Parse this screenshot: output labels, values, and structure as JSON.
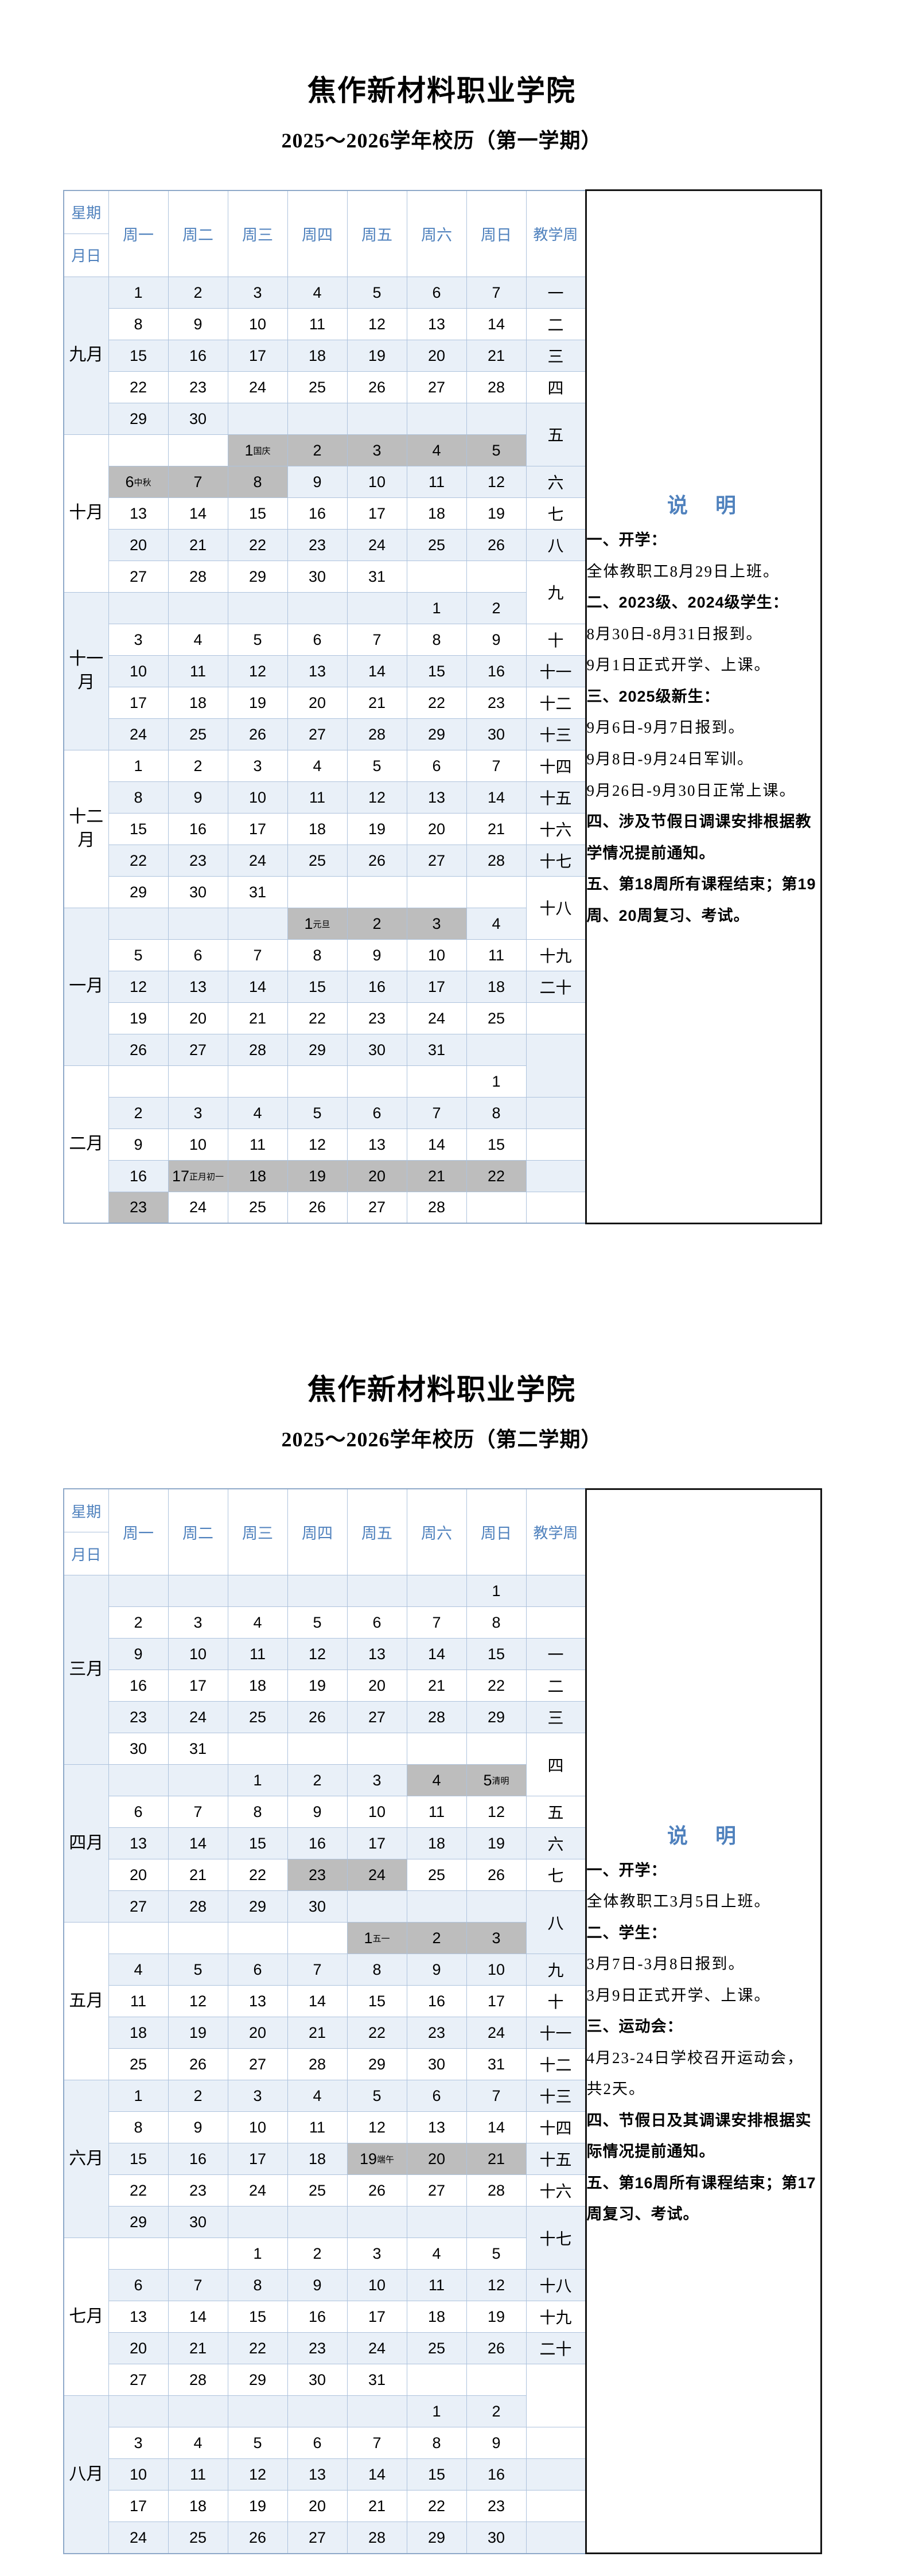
{
  "corner": {
    "top": "星期",
    "bottom": "月日"
  },
  "weekday_headers": [
    "周一",
    "周二",
    "周三",
    "周四",
    "周五",
    "周六",
    "周日"
  ],
  "week_col_header": "教学周",
  "notes_title": "说　明",
  "colors": {
    "header_text_blue": "#4f81bd",
    "light_row": "#e9f0f8",
    "weekend_tint": "#d9e3f1",
    "holiday_gray": "#bdbdbd",
    "grid_border": "#aec3dd",
    "notes_border": "#151515"
  },
  "semesters": [
    {
      "school": "焦作新材料职业学院",
      "title": "2025～2026学年校历（第一学期）",
      "months": [
        {
          "label": "九月",
          "span": 5
        },
        {
          "label": "十月",
          "span": 5
        },
        {
          "label": "十一月",
          "span": 5
        },
        {
          "label": "十二月",
          "span": 5
        },
        {
          "label": "一月",
          "span": 5
        },
        {
          "label": "二月",
          "span": 5
        }
      ],
      "rows": [
        {
          "cells": [
            "1",
            "2",
            "3",
            "4",
            "5",
            "6",
            "7"
          ],
          "w": "一"
        },
        {
          "cells": [
            "8",
            "9",
            "10",
            "11",
            "12",
            "13",
            "14"
          ],
          "w": "二"
        },
        {
          "cells": [
            "15",
            "16",
            "17",
            "18",
            "19",
            "20",
            "21"
          ],
          "w": "三"
        },
        {
          "cells": [
            "22",
            "23",
            "24",
            "25",
            "26",
            "27",
            "28"
          ],
          "w": "四"
        },
        {
          "cells": [
            "29",
            "30",
            "",
            "",
            "",
            "",
            ""
          ],
          "w": "五",
          "ws": 2
        },
        {
          "cells": [
            "",
            "",
            "1|国庆|g",
            "2||g",
            "3||g",
            "4||g",
            "5||g"
          ],
          "w": "-"
        },
        {
          "cells": [
            "6|中秋|g",
            "7||g",
            "8||g",
            "9",
            "10",
            "11",
            "12"
          ],
          "w": "六"
        },
        {
          "cells": [
            "13",
            "14",
            "15",
            "16",
            "17",
            "18",
            "19"
          ],
          "w": "七"
        },
        {
          "cells": [
            "20",
            "21",
            "22",
            "23",
            "24",
            "25",
            "26"
          ],
          "w": "八"
        },
        {
          "cells": [
            "27",
            "28",
            "29",
            "30",
            "31",
            "",
            ""
          ],
          "w": "九",
          "ws": 2
        },
        {
          "cells": [
            "",
            "",
            "",
            "",
            "",
            "1",
            "2"
          ],
          "w": "-"
        },
        {
          "cells": [
            "3",
            "4",
            "5",
            "6",
            "7",
            "8",
            "9"
          ],
          "w": "十"
        },
        {
          "cells": [
            "10",
            "11",
            "12",
            "13",
            "14",
            "15",
            "16"
          ],
          "w": "十一"
        },
        {
          "cells": [
            "17",
            "18",
            "19",
            "20",
            "21",
            "22",
            "23"
          ],
          "w": "十二"
        },
        {
          "cells": [
            "24",
            "25",
            "26",
            "27",
            "28",
            "29",
            "30"
          ],
          "w": "十三"
        },
        {
          "cells": [
            "1",
            "2",
            "3",
            "4",
            "5",
            "6",
            "7"
          ],
          "w": "十四"
        },
        {
          "cells": [
            "8",
            "9",
            "10",
            "11",
            "12",
            "13",
            "14"
          ],
          "w": "十五"
        },
        {
          "cells": [
            "15",
            "16",
            "17",
            "18",
            "19",
            "20",
            "21"
          ],
          "w": "十六"
        },
        {
          "cells": [
            "22",
            "23",
            "24",
            "25",
            "26",
            "27",
            "28"
          ],
          "w": "十七"
        },
        {
          "cells": [
            "29",
            "30",
            "31",
            "",
            "",
            "",
            ""
          ],
          "w": "十八",
          "ws": 2
        },
        {
          "cells": [
            "",
            "",
            "",
            "1|元旦|g",
            "2||g",
            "3||g",
            "4"
          ],
          "w": "-"
        },
        {
          "cells": [
            "5",
            "6",
            "7",
            "8",
            "9",
            "10",
            "11"
          ],
          "w": "十九"
        },
        {
          "cells": [
            "12",
            "13",
            "14",
            "15",
            "16",
            "17",
            "18"
          ],
          "w": "二十"
        },
        {
          "cells": [
            "19",
            "20",
            "21",
            "22",
            "23",
            "24",
            "25"
          ],
          "w": ""
        },
        {
          "cells": [
            "26",
            "27",
            "28",
            "29",
            "30",
            "31",
            ""
          ],
          "w": "",
          "ws": 2
        },
        {
          "cells": [
            "",
            "",
            "",
            "",
            "",
            "",
            "1"
          ],
          "w": "-"
        },
        {
          "cells": [
            "2",
            "3",
            "4",
            "5",
            "6",
            "7",
            "8"
          ],
          "w": ""
        },
        {
          "cells": [
            "9",
            "10",
            "11",
            "12",
            "13",
            "14",
            "15"
          ],
          "w": ""
        },
        {
          "cells": [
            "16",
            "17|正月初一|g",
            "18||g",
            "19||g",
            "20||g",
            "21||g",
            "22||g"
          ],
          "w": ""
        },
        {
          "cells": [
            "23||g",
            "24",
            "25",
            "26",
            "27",
            "28",
            ""
          ],
          "w": ""
        }
      ],
      "notes": [
        {
          "b": true,
          "t": "一、开学："
        },
        {
          "b": false,
          "t": "全体教职工8月29日上班。"
        },
        {
          "b": true,
          "t": "二、2023级、2024级学生："
        },
        {
          "b": false,
          "t": "8月30日-8月31日报到。"
        },
        {
          "b": false,
          "t": "9月1日正式开学、上课。"
        },
        {
          "b": true,
          "t": "三、2025级新生："
        },
        {
          "b": false,
          "t": "9月6日-9月7日报到。"
        },
        {
          "b": false,
          "t": "9月8日-9月24日军训。"
        },
        {
          "b": false,
          "t": "9月26日-9月30日正常上课。"
        },
        {
          "b": true,
          "t": "四、涉及节假日调课安排根据教学情况提前通知。"
        },
        {
          "b": true,
          "t": "五、第18周所有课程结束；第19周、20周复习、考试。"
        }
      ]
    },
    {
      "school": "焦作新材料职业学院",
      "title": "2025～2026学年校历（第二学期）",
      "months": [
        {
          "label": "三月",
          "span": 6
        },
        {
          "label": "四月",
          "span": 5
        },
        {
          "label": "五月",
          "span": 5
        },
        {
          "label": "六月",
          "span": 5
        },
        {
          "label": "七月",
          "span": 5
        },
        {
          "label": "八月",
          "span": 5
        }
      ],
      "rows": [
        {
          "cells": [
            "",
            "",
            "",
            "",
            "",
            "",
            "1"
          ],
          "w": ""
        },
        {
          "cells": [
            "2",
            "3",
            "4",
            "5",
            "6",
            "7",
            "8"
          ],
          "w": ""
        },
        {
          "cells": [
            "9",
            "10",
            "11",
            "12",
            "13",
            "14",
            "15"
          ],
          "w": "一"
        },
        {
          "cells": [
            "16",
            "17",
            "18",
            "19",
            "20",
            "21",
            "22"
          ],
          "w": "二"
        },
        {
          "cells": [
            "23",
            "24",
            "25",
            "26",
            "27",
            "28",
            "29"
          ],
          "w": "三"
        },
        {
          "cells": [
            "30",
            "31",
            "",
            "",
            "",
            "",
            ""
          ],
          "w": "四",
          "ws": 2
        },
        {
          "cells": [
            "",
            "",
            "1",
            "2",
            "3",
            "4||g",
            "5|清明|g"
          ],
          "w": "-"
        },
        {
          "cells": [
            "6",
            "7",
            "8",
            "9",
            "10",
            "11",
            "12"
          ],
          "w": "五"
        },
        {
          "cells": [
            "13",
            "14",
            "15",
            "16",
            "17",
            "18",
            "19"
          ],
          "w": "六"
        },
        {
          "cells": [
            "20",
            "21",
            "22",
            "23||g",
            "24||g",
            "25",
            "26"
          ],
          "w": "七"
        },
        {
          "cells": [
            "27",
            "28",
            "29",
            "30",
            "",
            "",
            ""
          ],
          "w": "八",
          "ws": 2
        },
        {
          "cells": [
            "",
            "",
            "",
            "",
            "1|五一|g",
            "2||g",
            "3||g"
          ],
          "w": "-"
        },
        {
          "cells": [
            "4",
            "5",
            "6",
            "7",
            "8",
            "9",
            "10"
          ],
          "w": "九"
        },
        {
          "cells": [
            "11",
            "12",
            "13",
            "14",
            "15",
            "16",
            "17"
          ],
          "w": "十"
        },
        {
          "cells": [
            "18",
            "19",
            "20",
            "21",
            "22",
            "23",
            "24"
          ],
          "w": "十一"
        },
        {
          "cells": [
            "25",
            "26",
            "27",
            "28",
            "29",
            "30",
            "31"
          ],
          "w": "十二"
        },
        {
          "cells": [
            "1",
            "2",
            "3",
            "4",
            "5",
            "6",
            "7"
          ],
          "w": "十三"
        },
        {
          "cells": [
            "8",
            "9",
            "10",
            "11",
            "12",
            "13",
            "14"
          ],
          "w": "十四"
        },
        {
          "cells": [
            "15",
            "16",
            "17",
            "18",
            "19|端午|g",
            "20||g",
            "21||g"
          ],
          "w": "十五"
        },
        {
          "cells": [
            "22",
            "23",
            "24",
            "25",
            "26",
            "27",
            "28"
          ],
          "w": "十六"
        },
        {
          "cells": [
            "29",
            "30",
            "",
            "",
            "",
            "",
            ""
          ],
          "w": "十七",
          "ws": 2
        },
        {
          "cells": [
            "",
            "",
            "1",
            "2",
            "3",
            "4",
            "5"
          ],
          "w": "-"
        },
        {
          "cells": [
            "6",
            "7",
            "8",
            "9",
            "10",
            "11",
            "12"
          ],
          "w": "十八"
        },
        {
          "cells": [
            "13",
            "14",
            "15",
            "16",
            "17",
            "18",
            "19"
          ],
          "w": "十九"
        },
        {
          "cells": [
            "20",
            "21",
            "22",
            "23",
            "24",
            "25",
            "26"
          ],
          "w": "二十"
        },
        {
          "cells": [
            "27",
            "28",
            "29",
            "30",
            "31",
            "",
            ""
          ],
          "w": "",
          "ws": 2
        },
        {
          "cells": [
            "",
            "",
            "",
            "",
            "",
            "1",
            "2"
          ],
          "w": "-"
        },
        {
          "cells": [
            "3",
            "4",
            "5",
            "6",
            "7",
            "8",
            "9"
          ],
          "w": ""
        },
        {
          "cells": [
            "10",
            "11",
            "12",
            "13",
            "14",
            "15",
            "16"
          ],
          "w": ""
        },
        {
          "cells": [
            "17",
            "18",
            "19",
            "20",
            "21",
            "22",
            "23"
          ],
          "w": ""
        },
        {
          "cells": [
            "24",
            "25",
            "26",
            "27",
            "28",
            "29",
            "30"
          ],
          "w": ""
        }
      ],
      "notes": [
        {
          "b": true,
          "t": "一、开学："
        },
        {
          "b": false,
          "t": "全体教职工3月5日上班。"
        },
        {
          "b": true,
          "t": "二、学生："
        },
        {
          "b": false,
          "t": "3月7日-3月8日报到。"
        },
        {
          "b": false,
          "t": "3月9日正式开学、上课。"
        },
        {
          "b": true,
          "t": "三、运动会："
        },
        {
          "b": false,
          "t": "4月23-24日学校召开运动会，共2天。"
        },
        {
          "b": true,
          "t": "四、节假日及其调课安排根据实际情况提前通知。"
        },
        {
          "b": true,
          "t": "五、第16周所有课程结束；第17周复习、考试。"
        }
      ]
    }
  ]
}
